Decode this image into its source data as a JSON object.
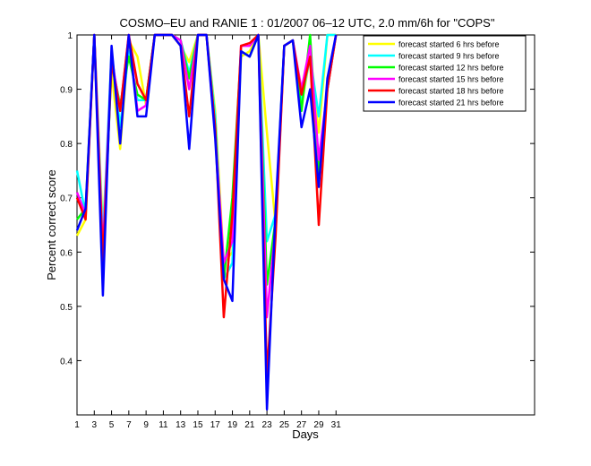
{
  "chart_data": {
    "type": "line",
    "title": "COSMO–EU and RANIE 1 : 01/2007 06–12 UTC, 2.0 mm/6h for \"COPS\"",
    "xlabel": "Days",
    "ylabel": "Percent correct score",
    "xlim": [
      1,
      54
    ],
    "ylim": [
      0.3,
      1.0
    ],
    "xticks": [
      1,
      3,
      5,
      7,
      9,
      11,
      13,
      15,
      17,
      19,
      21,
      23,
      25,
      27,
      29,
      31
    ],
    "xtick_labels": [
      "1",
      "3",
      "5",
      "7",
      "9",
      "11",
      "13",
      "15",
      "17",
      "19",
      "21",
      "23",
      "25",
      "27",
      "29",
      "31"
    ],
    "yticks": [
      0.4,
      0.5,
      0.6,
      0.7,
      0.8,
      0.9,
      1.0
    ],
    "ytick_labels": [
      "0.4",
      "0.5",
      "0.6",
      "0.7",
      "0.8",
      "0.9",
      "1"
    ],
    "legend_position": "top-right",
    "x": [
      1,
      2,
      3,
      4,
      5,
      6,
      7,
      8,
      9,
      10,
      11,
      12,
      13,
      14,
      15,
      16,
      17,
      18,
      19,
      20,
      21,
      22,
      23,
      24,
      25,
      26,
      27,
      28,
      29,
      30,
      31
    ],
    "series": [
      {
        "name": "forecast started 6 hrs before",
        "color": "#ffff00",
        "values": [
          0.63,
          0.66,
          1.0,
          0.64,
          0.93,
          0.79,
          0.99,
          0.96,
          0.87,
          1.0,
          1.0,
          1.0,
          0.98,
          0.95,
          1.0,
          1.0,
          0.86,
          0.58,
          0.6,
          0.96,
          0.97,
          1.0,
          0.82,
          0.65,
          0.98,
          0.99,
          0.87,
          0.96,
          0.82,
          1.0,
          1.0
        ]
      },
      {
        "name": "forecast started 9 hrs before",
        "color": "#00ffff",
        "values": [
          0.75,
          0.67,
          1.0,
          0.62,
          0.97,
          0.83,
          0.97,
          0.88,
          0.88,
          1.0,
          1.0,
          1.0,
          0.99,
          0.93,
          1.0,
          1.0,
          0.85,
          0.55,
          0.58,
          0.97,
          0.96,
          1.0,
          0.62,
          0.67,
          0.98,
          0.99,
          0.88,
          0.96,
          0.85,
          1.0,
          1.0
        ]
      },
      {
        "name": "forecast started 12 hrs before",
        "color": "#00ff00",
        "values": [
          0.66,
          0.68,
          1.0,
          0.57,
          0.95,
          0.87,
          0.96,
          0.89,
          0.88,
          1.0,
          1.0,
          1.0,
          0.99,
          0.92,
          1.0,
          1.0,
          0.83,
          0.55,
          0.7,
          0.97,
          0.96,
          1.0,
          0.54,
          0.66,
          0.98,
          0.99,
          0.86,
          1.0,
          0.74,
          0.9,
          1.0
        ]
      },
      {
        "name": "forecast started 15 hrs before",
        "color": "#ff00ff",
        "values": [
          0.71,
          0.67,
          1.0,
          0.6,
          0.96,
          0.86,
          1.0,
          0.86,
          0.87,
          1.0,
          1.0,
          1.0,
          0.99,
          0.9,
          1.0,
          1.0,
          0.82,
          0.58,
          0.62,
          0.98,
          0.98,
          1.0,
          0.48,
          0.65,
          0.98,
          0.99,
          0.9,
          0.98,
          0.77,
          0.9,
          1.0
        ]
      },
      {
        "name": "forecast started 18 hrs before",
        "color": "#ff0000",
        "values": [
          0.7,
          0.66,
          1.0,
          0.58,
          0.95,
          0.86,
          1.0,
          0.91,
          0.88,
          1.0,
          1.0,
          1.0,
          0.98,
          0.85,
          1.0,
          1.0,
          0.83,
          0.48,
          0.67,
          0.98,
          0.985,
          1.0,
          0.37,
          0.63,
          0.98,
          0.99,
          0.89,
          0.96,
          0.65,
          0.9,
          1.0
        ]
      },
      {
        "name": "forecast started 21 hrs before",
        "color": "#0000ff",
        "values": [
          0.64,
          0.68,
          1.0,
          0.52,
          0.98,
          0.8,
          1.0,
          0.85,
          0.85,
          1.0,
          1.0,
          1.0,
          0.98,
          0.79,
          1.0,
          1.0,
          0.81,
          0.55,
          0.51,
          0.97,
          0.96,
          1.0,
          0.31,
          0.68,
          0.98,
          0.99,
          0.83,
          0.9,
          0.72,
          0.92,
          1.0
        ]
      }
    ]
  }
}
